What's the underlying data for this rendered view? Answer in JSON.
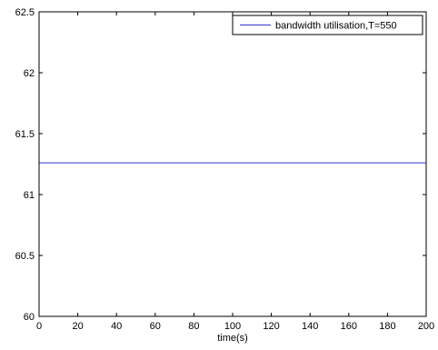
{
  "chart_data": {
    "type": "line",
    "title": "",
    "xlabel": "time(s)",
    "ylabel": "",
    "xlim": [
      0,
      200
    ],
    "ylim": [
      60,
      62.5
    ],
    "xticks": [
      0,
      20,
      40,
      60,
      80,
      100,
      120,
      140,
      160,
      180,
      200
    ],
    "yticks": [
      60,
      60.5,
      61,
      61.5,
      62,
      62.5
    ],
    "xtick_labels": [
      "0",
      "20",
      "40",
      "60",
      "80",
      "100",
      "120",
      "140",
      "160",
      "180",
      "200"
    ],
    "ytick_labels": [
      "60",
      "60.5",
      "61",
      "61.5",
      "62",
      "62.5"
    ],
    "grid": false,
    "legend_position": "top-right",
    "series": [
      {
        "name": "bandwidth utilisation,T=550",
        "color": "#3333cc",
        "x": [
          0,
          200
        ],
        "y": [
          61.26,
          61.26
        ]
      }
    ]
  }
}
